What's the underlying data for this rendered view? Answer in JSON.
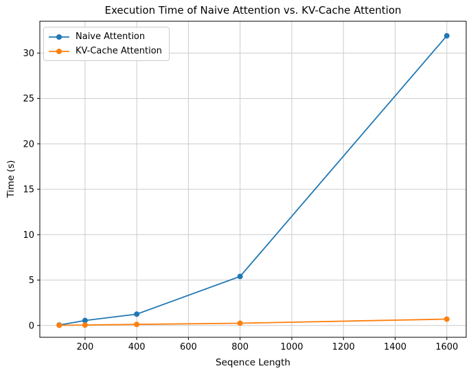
{
  "figure": {
    "background": "#ffffff"
  },
  "chart_data": {
    "type": "line",
    "title": "Execution Time of Naive Attention vs. KV-Cache Attention",
    "xlabel": "Seqence Length",
    "ylabel": "Time (s)",
    "x": [
      100,
      200,
      400,
      800,
      1600
    ],
    "series": [
      {
        "name": "Naive Attention",
        "color": "#1f77b4",
        "marker": "circle",
        "values": [
          0.05,
          0.55,
          1.25,
          5.4,
          31.9
        ]
      },
      {
        "name": "KV-Cache Attention",
        "color": "#ff7f0e",
        "marker": "circle",
        "values": [
          0.02,
          0.05,
          0.12,
          0.25,
          0.7
        ]
      }
    ],
    "xticks": [
      200,
      400,
      600,
      800,
      1000,
      1200,
      1400,
      1600
    ],
    "yticks": [
      0,
      5,
      10,
      15,
      20,
      25,
      30
    ],
    "xlim": [
      25,
      1675
    ],
    "ylim": [
      -1.3,
      33.5
    ],
    "grid": true,
    "grid_color": "#cccccc",
    "axis_color": "#000000",
    "legend_position": "upper left"
  }
}
